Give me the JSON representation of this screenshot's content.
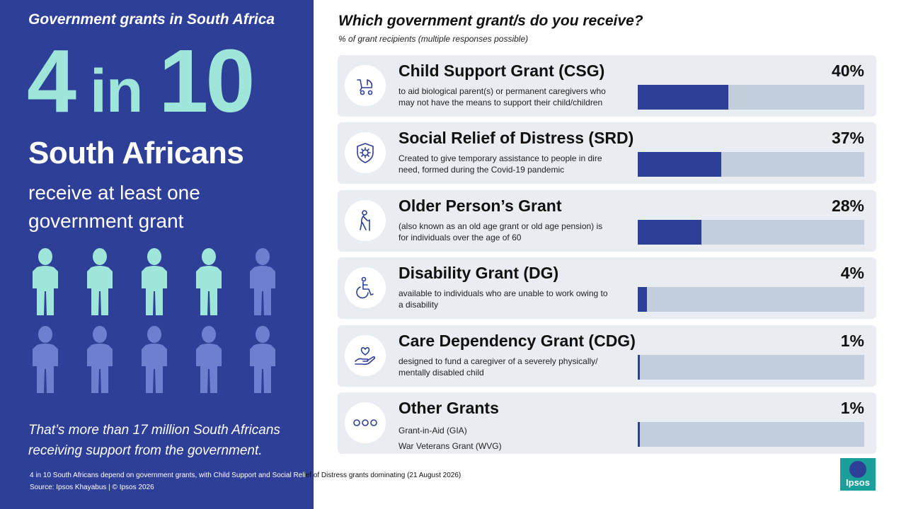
{
  "left_panel": {
    "kicker": "Government grants in South Africa",
    "big_number_a": "4",
    "big_number_mid": " in ",
    "big_number_b": "10",
    "headline": "South Africans",
    "subline_1": "receive at least one",
    "subline_2": "government grant",
    "pictogram": {
      "total": 10,
      "highlighted": 4,
      "highlight_color": "#9ee6d9",
      "base_color": "#6f7fd0"
    },
    "more_1": "That’s more than 17 million South Africans",
    "more_2": "receiving support from the government."
  },
  "question": "Which government grant/s do you receive?",
  "question_sub": "% of grant recipients (multiple responses possible)",
  "chart_data": {
    "type": "bar",
    "title": "Which government grant/s do you receive?",
    "subtitle": "% of grant recipients (multiple responses possible)",
    "xlim": [
      0,
      100
    ],
    "categories": [
      "Child Support Grant (CSG)",
      "Social Relief of Distress (SRD)",
      "Older Person’s Grant",
      "Disability Grant (DG)",
      "Care Dependency Grant (CDG)",
      "Other Grants"
    ],
    "values": [
      40,
      37,
      28,
      4,
      1,
      1
    ],
    "value_labels": [
      "40%",
      "37%",
      "28%",
      "4%",
      "1%",
      "1%"
    ],
    "descriptions": [
      [
        "to aid biological parent(s) or permanent caregivers who",
        "may not have the means to support their child/children"
      ],
      [
        "Created to give temporary assistance to people in dire",
        "need, formed during the Covid-19 pandemic"
      ],
      [
        "(also known as an old age grant or old age pension) is",
        "for individuals over the age of 60"
      ],
      [
        "available to individuals who are unable to work owing to",
        "a disability"
      ],
      [
        "designed to fund a caregiver of a severely physically/",
        "mentally disabled child"
      ],
      [
        "Grant-in-Aid (GIA)",
        "War Veterans Grant (WVG)"
      ]
    ],
    "icons": [
      "stroller-icon",
      "virus-shield-icon",
      "elderly-cane-icon",
      "wheelchair-icon",
      "heart-hand-icon",
      "ellipsis-icon"
    ],
    "bar_color": "#2e3f98",
    "track_color": "#c2cedb"
  },
  "footer": {
    "note_a": "4 in 10 South Africans depend on government grants, with Child Support and Social Reli",
    "note_b": "ef of Distress grants dominating (21 August 2026)",
    "source": "Source: Ipsos Khayabus  |  © Ipsos 2026"
  },
  "logo": {
    "text": "Ipsos",
    "color": "#1a9f9a"
  }
}
